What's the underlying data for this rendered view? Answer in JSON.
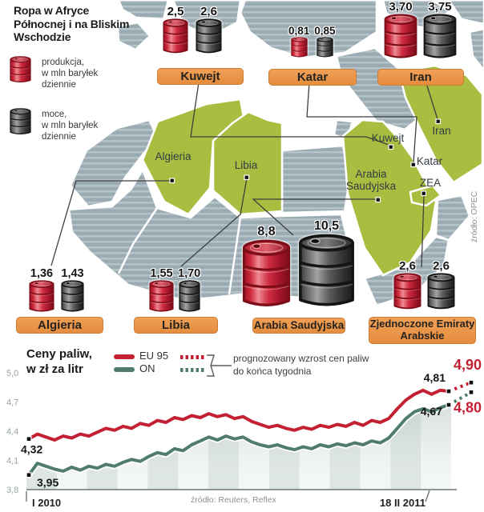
{
  "title_lines": [
    "Ropa w Afryce",
    "Północnej i na Bliskim",
    "Wschodzie"
  ],
  "legend": {
    "production": {
      "lines": [
        "produkcja,",
        "w mln baryłek",
        "dziennie"
      ]
    },
    "capacity": {
      "lines": [
        "moce,",
        "w mln baryłek",
        "dziennie"
      ]
    }
  },
  "map": {
    "source": "źródło: OPEC",
    "labels": {
      "algieria": "Algieria",
      "libia": "Libia",
      "kuwejt": "Kuwejt",
      "katar": "Katar",
      "arabia_line1": "Arabia",
      "arabia_line2": "Saudyjska",
      "zea": "ZEA",
      "iran": "Iran"
    }
  },
  "colors": {
    "accent_red": "#c32033",
    "accent_green": "#507d6a",
    "highlight_country_green": "#a9be41",
    "land_gray": "#9aabb3",
    "tag_orange": "#e9964a"
  },
  "chart": {
    "title_lines": [
      "Ceny paliw,",
      "w zł za litr"
    ],
    "legend": {
      "eu95": "EU 95",
      "on": "ON",
      "forecast_lines": [
        "prognozowany wzrost cen paliw",
        "do końca tygodnia"
      ]
    }
  },
  "chart_data": [
    {
      "id": "fuel-prices",
      "type": "line",
      "title": "Ceny paliw, w zł za litr",
      "ylabel": "zł za litr",
      "ylim": [
        3.8,
        5.0
      ],
      "grid": false,
      "legend_position": "top",
      "x_axis": {
        "start_label": "I 2010",
        "end_label": "18 II 2011"
      },
      "y_ticks": [
        {
          "label": "5,0",
          "value": 5.0
        },
        {
          "label": "4,7",
          "value": 4.7
        },
        {
          "label": "4,4",
          "value": 4.4
        },
        {
          "label": "4,1",
          "value": 4.1
        },
        {
          "label": "3,8",
          "value": 3.8
        }
      ],
      "source": "źródło: Reuters, Reflex",
      "forecast_note": "prognozowany wzrost cen paliw do końca tygodnia",
      "series": [
        {
          "name": "EU 95",
          "color": "#c32033",
          "start_label": "4,32",
          "end_label": "4,81",
          "forecast_value": 4.9,
          "forecast_label": "4,90",
          "values": [
            4.32,
            4.37,
            4.34,
            4.31,
            4.35,
            4.33,
            4.37,
            4.35,
            4.39,
            4.43,
            4.41,
            4.45,
            4.43,
            4.48,
            4.46,
            4.51,
            4.49,
            4.54,
            4.52,
            4.56,
            4.54,
            4.58,
            4.55,
            4.57,
            4.53,
            4.55,
            4.5,
            4.47,
            4.44,
            4.46,
            4.43,
            4.41,
            4.44,
            4.42,
            4.46,
            4.44,
            4.47,
            4.45,
            4.49,
            4.46,
            4.51,
            4.49,
            4.53,
            4.63,
            4.72,
            4.78,
            4.82,
            4.78,
            4.82,
            4.81
          ]
        },
        {
          "name": "ON",
          "color": "#507d6a",
          "start_label": "3,95",
          "end_label": "4,67",
          "forecast_value": 4.8,
          "forecast_label": "4,80",
          "values": [
            3.95,
            4.07,
            4.04,
            4.01,
            3.99,
            4.03,
            4.0,
            4.04,
            4.02,
            4.06,
            4.04,
            4.08,
            4.11,
            4.09,
            4.14,
            4.18,
            4.16,
            4.22,
            4.2,
            4.26,
            4.3,
            4.34,
            4.31,
            4.35,
            4.32,
            4.34,
            4.29,
            4.26,
            4.24,
            4.26,
            4.23,
            4.21,
            4.24,
            4.22,
            4.26,
            4.24,
            4.27,
            4.25,
            4.28,
            4.26,
            4.3,
            4.28,
            4.33,
            4.43,
            4.53,
            4.6,
            4.63,
            4.6,
            4.64,
            4.67
          ]
        }
      ]
    },
    {
      "id": "oil-production-capacity",
      "type": "pictogram-bar",
      "title": "Ropa w Afryce Północnej i na Bliskim Wschodzie",
      "unit": "mln baryłek dziennie",
      "categories": [
        "Kuwejt",
        "Katar",
        "Iran",
        "Algieria",
        "Libia",
        "Arabia Saudyjska",
        "Zjednoczone Emiraty Arabskie"
      ],
      "series": [
        {
          "name": "produkcja",
          "values": [
            2.5,
            0.81,
            3.7,
            1.36,
            1.55,
            8.8,
            2.6
          ]
        },
        {
          "name": "moce",
          "values": [
            2.6,
            0.85,
            3.75,
            1.43,
            1.7,
            10.5,
            2.6
          ]
        }
      ],
      "display_values": {
        "production": [
          "2,5",
          "0,81",
          "3,70",
          "1,36",
          "1,55",
          "8,8",
          "2,6"
        ],
        "capacity": [
          "2,6",
          "0,85",
          "3,75",
          "1,43",
          "1,70",
          "10,5",
          "2,6"
        ]
      },
      "source": "źródło: OPEC"
    }
  ]
}
